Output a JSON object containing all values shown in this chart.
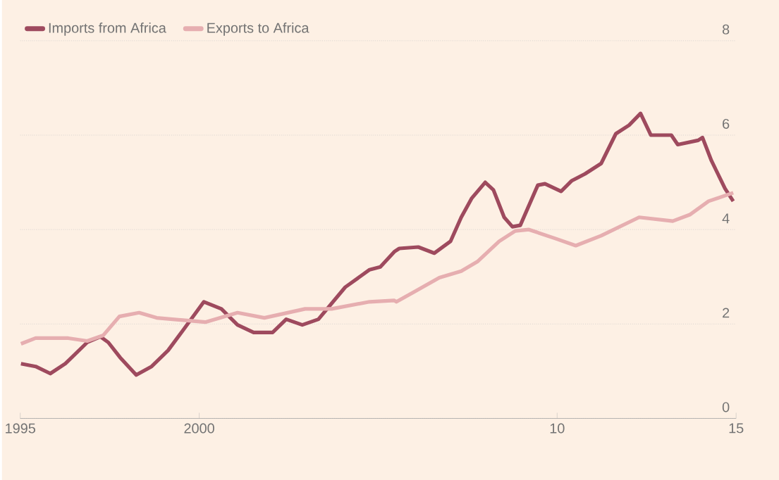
{
  "chart_data": {
    "type": "line",
    "series": [
      {
        "name": "Imports from Africa",
        "color": "#9e4a5e",
        "x": [
          1995.02,
          1995.43,
          1995.84,
          1996.26,
          1996.87,
          1997.24,
          1997.46,
          1997.79,
          1998.24,
          1998.67,
          1999.13,
          1999.58,
          2000.13,
          2000.62,
          2001.07,
          2001.52,
          2002.05,
          2002.43,
          2002.88,
          2003.33,
          2004.08,
          2004.76,
          2005.06,
          2005.45,
          2005.59,
          2006.12,
          2006.57,
          2007.02,
          2007.32,
          2007.61,
          2007.99,
          2008.22,
          2008.52,
          2008.75,
          2008.97,
          2009.46,
          2009.66,
          2010.11,
          2010.4,
          2010.78,
          2011.23,
          2011.64,
          2012.01,
          2012.33,
          2012.62,
          2013.19,
          2013.37,
          2013.94,
          2014.06,
          2014.31,
          2014.69,
          2014.92
        ],
        "values": [
          1.16,
          1.1,
          0.95,
          1.16,
          1.61,
          1.73,
          1.61,
          1.29,
          0.92,
          1.1,
          1.44,
          1.9,
          2.47,
          2.32,
          1.98,
          1.82,
          1.82,
          2.1,
          1.98,
          2.1,
          2.78,
          3.15,
          3.21,
          3.53,
          3.6,
          3.63,
          3.5,
          3.75,
          4.26,
          4.66,
          5.0,
          4.84,
          4.26,
          4.06,
          4.09,
          4.94,
          4.97,
          4.81,
          5.03,
          5.18,
          5.4,
          6.03,
          6.21,
          6.46,
          6.0,
          6.0,
          5.8,
          5.89,
          5.95,
          5.46,
          4.87,
          4.6
        ]
      },
      {
        "name": "Exports to Africa",
        "color": "#e6aeb0",
        "x": [
          1995.02,
          1995.43,
          1996.34,
          1996.87,
          1997.32,
          1997.77,
          1998.32,
          1998.81,
          1999.72,
          2000.17,
          2001.07,
          2001.82,
          2002.96,
          2003.7,
          2004.76,
          2005.45,
          2005.51,
          2005.96,
          2006.71,
          2007.32,
          2007.77,
          2008.38,
          2008.83,
          2009.21,
          2009.95,
          2010.52,
          2011.23,
          2012.29,
          2013.23,
          2013.72,
          2014.23,
          2014.92
        ],
        "values": [
          1.58,
          1.7,
          1.7,
          1.64,
          1.76,
          2.16,
          2.24,
          2.13,
          2.07,
          2.04,
          2.24,
          2.13,
          2.32,
          2.32,
          2.47,
          2.5,
          2.47,
          2.66,
          2.98,
          3.12,
          3.32,
          3.75,
          3.97,
          4.0,
          3.81,
          3.66,
          3.87,
          4.26,
          4.18,
          4.32,
          4.6,
          4.78
        ]
      }
    ],
    "xlim": [
      1995,
      2015
    ],
    "xticks": [
      1995,
      2000,
      {
        "value": 2010,
        "label": "10"
      },
      {
        "value": 2015,
        "label": "15"
      }
    ],
    "ylim": [
      0,
      8
    ],
    "yticks": [
      0,
      2,
      4,
      6,
      8
    ],
    "grid": "y",
    "legend": "top left",
    "line_style": "solid",
    "marker": "none"
  }
}
